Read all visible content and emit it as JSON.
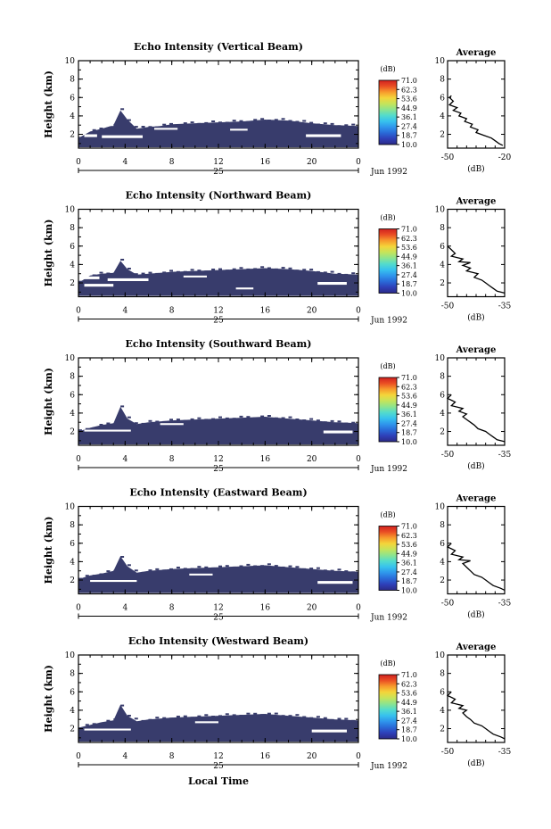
{
  "figure": {
    "xlabel": "Local Time",
    "date_label": "Jun 1992",
    "day_label": "25",
    "ylabel": "Height (km)",
    "colorbar_unit": "(dB)",
    "colorbar_ticks": [
      "71.0",
      "62.3",
      "53.6",
      "44.9",
      "36.1",
      "27.4",
      "18.7",
      "10.0"
    ],
    "avg_title": "Average",
    "avg_xlabel": "(dB)",
    "colors": {
      "echo": "#383c6c",
      "axis": "#000000",
      "background": "#ffffff"
    },
    "colormap": [
      "#2c2a86",
      "#2e3fb8",
      "#2a6ad8",
      "#2f96ec",
      "#37c2ee",
      "#53dccc",
      "#8de48e",
      "#c6e45a",
      "#f4d53a",
      "#f79a2c",
      "#ea4e24",
      "#d0211f"
    ]
  },
  "chart_data": [
    {
      "type": "heatmap",
      "title": "Echo Intensity (Vertical Beam)",
      "xlabel": "Local Time",
      "ylabel": "Height (km)",
      "xlim": [
        0,
        24
      ],
      "ylim": [
        0.5,
        10
      ],
      "x_ticks": [
        "0",
        "4",
        "8",
        "12",
        "16",
        "20",
        "0"
      ],
      "y_ticks": [
        "2",
        "4",
        "6",
        "8",
        "10"
      ],
      "colorbar": {
        "label": "(dB)",
        "range": [
          10.0,
          71.0
        ],
        "ticks": [
          71.0,
          62.3,
          53.6,
          44.9,
          36.1,
          27.4,
          18.7,
          10.0
        ]
      },
      "echo_top_km": [
        [
          0,
          1.6
        ],
        [
          1,
          2.3
        ],
        [
          2,
          2.6
        ],
        [
          3,
          3.0
        ],
        [
          3.6,
          4.6
        ],
        [
          4.2,
          3.6
        ],
        [
          5,
          2.6
        ],
        [
          6,
          2.8
        ],
        [
          7,
          2.9
        ],
        [
          8,
          3.1
        ],
        [
          10,
          3.2
        ],
        [
          12,
          3.3
        ],
        [
          14,
          3.4
        ],
        [
          16,
          3.6
        ],
        [
          18,
          3.5
        ],
        [
          20,
          3.2
        ],
        [
          22,
          3.0
        ],
        [
          24,
          2.9
        ]
      ],
      "echo_bottom_km": 0.6,
      "gaps": [
        [
          0.5,
          1.6,
          1.7,
          2.0
        ],
        [
          2.0,
          5.5,
          1.6,
          1.9
        ],
        [
          6.5,
          8.5,
          2.5,
          2.7
        ],
        [
          13.0,
          14.5,
          2.4,
          2.6
        ],
        [
          19.5,
          22.5,
          1.7,
          2.0
        ],
        [
          1.0,
          3.0,
          2.9,
          3.2
        ]
      ],
      "average": {
        "title": "Average",
        "xlabel": "(dB)",
        "x_ticks": [
          "-50",
          "-20"
        ],
        "y_ticks": [
          "2",
          "4",
          "6",
          "8",
          "10"
        ],
        "xlim": [
          -50,
          -20
        ],
        "ylim": [
          0.5,
          10
        ],
        "profile": [
          [
            -48,
            6.2
          ],
          [
            -49,
            6.0
          ],
          [
            -47,
            5.6
          ],
          [
            -49,
            5.2
          ],
          [
            -45,
            4.9
          ],
          [
            -47,
            4.6
          ],
          [
            -43,
            4.3
          ],
          [
            -44,
            4.0
          ],
          [
            -40,
            3.7
          ],
          [
            -41,
            3.4
          ],
          [
            -37,
            3.1
          ],
          [
            -38,
            2.8
          ],
          [
            -34,
            2.5
          ],
          [
            -35,
            2.2
          ],
          [
            -31,
            1.9
          ],
          [
            -27,
            1.6
          ],
          [
            -25,
            1.3
          ],
          [
            -23,
            1.0
          ],
          [
            -21,
            0.8
          ]
        ]
      }
    },
    {
      "type": "heatmap",
      "title": "Echo Intensity (Northward Beam)",
      "xlabel": "Local Time",
      "ylabel": "Height (km)",
      "xlim": [
        0,
        24
      ],
      "ylim": [
        0.5,
        10
      ],
      "x_ticks": [
        "0",
        "4",
        "8",
        "12",
        "16",
        "20",
        "0"
      ],
      "y_ticks": [
        "2",
        "4",
        "6",
        "8",
        "10"
      ],
      "colorbar": {
        "label": "(dB)",
        "range": [
          10.0,
          71.0
        ],
        "ticks": [
          71.0,
          62.3,
          53.6,
          44.9,
          36.1,
          27.4,
          18.7,
          10.0
        ]
      },
      "echo_top_km": [
        [
          0,
          2.0
        ],
        [
          1,
          2.8
        ],
        [
          2,
          3.0
        ],
        [
          3,
          3.1
        ],
        [
          3.6,
          4.4
        ],
        [
          4.2,
          3.5
        ],
        [
          5,
          2.9
        ],
        [
          6,
          3.0
        ],
        [
          7,
          3.1
        ],
        [
          8,
          3.2
        ],
        [
          10,
          3.3
        ],
        [
          12,
          3.4
        ],
        [
          14,
          3.5
        ],
        [
          16,
          3.6
        ],
        [
          18,
          3.5
        ],
        [
          20,
          3.3
        ],
        [
          22,
          3.0
        ],
        [
          24,
          2.9
        ]
      ],
      "echo_bottom_km": 0.6,
      "gaps": [
        [
          0.0,
          1.8,
          2.4,
          2.7
        ],
        [
          2.5,
          6.0,
          2.2,
          2.5
        ],
        [
          0.5,
          3.0,
          1.6,
          1.9
        ],
        [
          9.0,
          11.0,
          2.6,
          2.8
        ],
        [
          20.5,
          23.0,
          1.8,
          2.1
        ],
        [
          13.5,
          15.0,
          1.3,
          1.5
        ]
      ],
      "average": {
        "title": "Average",
        "xlabel": "(dB)",
        "x_ticks": [
          "-50",
          "-35"
        ],
        "y_ticks": [
          "2",
          "4",
          "6",
          "8",
          "10"
        ],
        "xlim": [
          -50,
          -35
        ],
        "ylim": [
          0.5,
          10
        ],
        "profile": [
          [
            -50,
            6.0
          ],
          [
            -49,
            5.6
          ],
          [
            -48,
            5.2
          ],
          [
            -49,
            4.9
          ],
          [
            -46,
            4.6
          ],
          [
            -47,
            4.3
          ],
          [
            -44,
            4.2
          ],
          [
            -46,
            3.9
          ],
          [
            -44,
            3.6
          ],
          [
            -45,
            3.3
          ],
          [
            -42,
            3.0
          ],
          [
            -43,
            2.6
          ],
          [
            -41,
            2.3
          ],
          [
            -40,
            2.0
          ],
          [
            -39,
            1.7
          ],
          [
            -38,
            1.4
          ],
          [
            -37,
            1.1
          ],
          [
            -35,
            0.9
          ]
        ]
      }
    },
    {
      "type": "heatmap",
      "title": "Echo Intensity (Southward Beam)",
      "xlabel": "Local Time",
      "ylabel": "Height (km)",
      "xlim": [
        0,
        24
      ],
      "ylim": [
        0.5,
        10
      ],
      "x_ticks": [
        "0",
        "4",
        "8",
        "12",
        "16",
        "20",
        "0"
      ],
      "y_ticks": [
        "2",
        "4",
        "6",
        "8",
        "10"
      ],
      "colorbar": {
        "label": "(dB)",
        "range": [
          10.0,
          71.0
        ],
        "ticks": [
          71.0,
          62.3,
          53.6,
          44.9,
          36.1,
          27.4,
          18.7,
          10.0
        ]
      },
      "echo_top_km": [
        [
          0,
          2.0
        ],
        [
          1,
          2.4
        ],
        [
          2,
          2.7
        ],
        [
          3,
          2.9
        ],
        [
          3.6,
          4.7
        ],
        [
          4.2,
          3.4
        ],
        [
          5,
          2.8
        ],
        [
          6,
          3.0
        ],
        [
          7,
          3.1
        ],
        [
          8,
          3.2
        ],
        [
          10,
          3.3
        ],
        [
          12,
          3.4
        ],
        [
          14,
          3.5
        ],
        [
          16,
          3.6
        ],
        [
          18,
          3.4
        ],
        [
          20,
          3.2
        ],
        [
          22,
          3.0
        ],
        [
          24,
          2.9
        ]
      ],
      "echo_bottom_km": 0.6,
      "gaps": [
        [
          0.5,
          4.5,
          2.0,
          2.2
        ],
        [
          21.0,
          23.5,
          1.8,
          2.1
        ],
        [
          7.0,
          9.0,
          2.7,
          2.9
        ]
      ],
      "average": {
        "title": "Average",
        "xlabel": "(dB)",
        "x_ticks": [
          "-50",
          "-35"
        ],
        "y_ticks": [
          "2",
          "4",
          "6",
          "8",
          "10"
        ],
        "xlim": [
          -50,
          -35
        ],
        "ylim": [
          0.5,
          10
        ],
        "profile": [
          [
            -49,
            6.0
          ],
          [
            -50,
            5.6
          ],
          [
            -48,
            5.2
          ],
          [
            -49,
            4.8
          ],
          [
            -46,
            4.5
          ],
          [
            -47,
            4.2
          ],
          [
            -45,
            3.9
          ],
          [
            -46,
            3.6
          ],
          [
            -45,
            3.3
          ],
          [
            -44,
            3.0
          ],
          [
            -43,
            2.7
          ],
          [
            -42,
            2.3
          ],
          [
            -40,
            2.0
          ],
          [
            -39,
            1.7
          ],
          [
            -38,
            1.4
          ],
          [
            -37,
            1.1
          ],
          [
            -35,
            0.9
          ]
        ]
      }
    },
    {
      "type": "heatmap",
      "title": "Echo Intensity (Eastward Beam)",
      "xlabel": "Local Time",
      "ylabel": "Height (km)",
      "xlim": [
        0,
        24
      ],
      "ylim": [
        0.5,
        10
      ],
      "x_ticks": [
        "0",
        "4",
        "8",
        "12",
        "16",
        "20",
        "0"
      ],
      "y_ticks": [
        "2",
        "4",
        "6",
        "8",
        "10"
      ],
      "colorbar": {
        "label": "(dB)",
        "range": [
          10.0,
          71.0
        ],
        "ticks": [
          71.0,
          62.3,
          53.6,
          44.9,
          36.1,
          27.4,
          18.7,
          10.0
        ]
      },
      "echo_top_km": [
        [
          0,
          2.1
        ],
        [
          1,
          2.5
        ],
        [
          2,
          2.7
        ],
        [
          3,
          3.0
        ],
        [
          3.6,
          4.6
        ],
        [
          4.2,
          3.5
        ],
        [
          5,
          2.8
        ],
        [
          6,
          3.0
        ],
        [
          7,
          3.1
        ],
        [
          8,
          3.2
        ],
        [
          10,
          3.3
        ],
        [
          12,
          3.4
        ],
        [
          14,
          3.5
        ],
        [
          16,
          3.6
        ],
        [
          18,
          3.4
        ],
        [
          20,
          3.2
        ],
        [
          22,
          3.0
        ],
        [
          24,
          2.9
        ]
      ],
      "echo_bottom_km": 0.6,
      "gaps": [
        [
          1.0,
          5.0,
          1.8,
          2.0
        ],
        [
          20.5,
          23.5,
          1.6,
          1.9
        ],
        [
          9.5,
          11.5,
          2.5,
          2.7
        ]
      ],
      "average": {
        "title": "Average",
        "xlabel": "(dB)",
        "x_ticks": [
          "-50",
          "-35"
        ],
        "y_ticks": [
          "2",
          "4",
          "6",
          "8",
          "10"
        ],
        "xlim": [
          -50,
          -35
        ],
        "ylim": [
          0.5,
          10
        ],
        "profile": [
          [
            -49,
            6.0
          ],
          [
            -50,
            5.6
          ],
          [
            -48,
            5.2
          ],
          [
            -49,
            4.8
          ],
          [
            -46,
            4.5
          ],
          [
            -47,
            4.2
          ],
          [
            -44,
            4.1
          ],
          [
            -46,
            3.8
          ],
          [
            -45,
            3.4
          ],
          [
            -44,
            3.0
          ],
          [
            -43,
            2.6
          ],
          [
            -41,
            2.3
          ],
          [
            -40,
            2.0
          ],
          [
            -39,
            1.7
          ],
          [
            -38,
            1.4
          ],
          [
            -36,
            1.1
          ],
          [
            -35,
            0.9
          ]
        ]
      }
    },
    {
      "type": "heatmap",
      "title": "Echo Intensity (Westward Beam)",
      "xlabel": "Local Time",
      "ylabel": "Height (km)",
      "xlim": [
        0,
        24
      ],
      "ylim": [
        0.5,
        10
      ],
      "x_ticks": [
        "0",
        "4",
        "8",
        "12",
        "16",
        "20",
        "0"
      ],
      "y_ticks": [
        "2",
        "4",
        "6",
        "8",
        "10"
      ],
      "colorbar": {
        "label": "(dB)",
        "range": [
          10.0,
          71.0
        ],
        "ticks": [
          71.0,
          62.3,
          53.6,
          44.9,
          36.1,
          27.4,
          18.7,
          10.0
        ]
      },
      "echo_top_km": [
        [
          0,
          2.1
        ],
        [
          1,
          2.4
        ],
        [
          2,
          2.7
        ],
        [
          3,
          2.9
        ],
        [
          3.6,
          4.6
        ],
        [
          4.2,
          3.4
        ],
        [
          5,
          2.8
        ],
        [
          6,
          3.0
        ],
        [
          7,
          3.1
        ],
        [
          8,
          3.2
        ],
        [
          10,
          3.3
        ],
        [
          12,
          3.4
        ],
        [
          14,
          3.5
        ],
        [
          16,
          3.6
        ],
        [
          18,
          3.4
        ],
        [
          20,
          3.2
        ],
        [
          22,
          3.0
        ],
        [
          24,
          2.9
        ]
      ],
      "echo_bottom_km": 0.6,
      "gaps": [
        [
          0.5,
          4.5,
          1.8,
          2.0
        ],
        [
          20.0,
          23.0,
          1.6,
          1.9
        ],
        [
          10.0,
          12.0,
          2.6,
          2.8
        ]
      ],
      "average": {
        "title": "Average",
        "xlabel": "(dB)",
        "x_ticks": [
          "-50",
          "-35"
        ],
        "y_ticks": [
          "2",
          "4",
          "6",
          "8",
          "10"
        ],
        "xlim": [
          -50,
          -35
        ],
        "ylim": [
          0.5,
          10
        ],
        "profile": [
          [
            -49,
            6.0
          ],
          [
            -50,
            5.6
          ],
          [
            -48,
            5.2
          ],
          [
            -49,
            4.8
          ],
          [
            -46,
            4.5
          ],
          [
            -47,
            4.2
          ],
          [
            -45,
            4.0
          ],
          [
            -46,
            3.7
          ],
          [
            -45,
            3.3
          ],
          [
            -44,
            3.0
          ],
          [
            -43,
            2.6
          ],
          [
            -41,
            2.3
          ],
          [
            -40,
            2.0
          ],
          [
            -39,
            1.7
          ],
          [
            -38,
            1.4
          ],
          [
            -36,
            1.1
          ],
          [
            -35,
            0.9
          ]
        ]
      }
    }
  ]
}
